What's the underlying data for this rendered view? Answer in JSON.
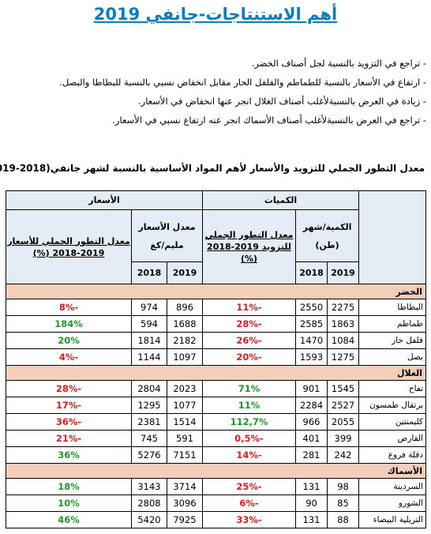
{
  "title": "أهم الاستنتاجات-جانفي 2019",
  "bullets": [
    "- تراجع في التزويد بالنسبة لجل أصناف الخضر.",
    "- ارتفاع في الأسعار بالنسبة للطماطم والفلفل الحار مقابل انخفاض نسبي بالنسبة للبطاطا والبصل.",
    "- زيادة في العرض بالنسبةلأغلب أصناف الغلال انجر عنها انخفاض في الأسعار.",
    "- تراجع في العرض بالنسبةلأغلب أصناف الأسماك انجر عنه ارتفاع نسبي في الأسعار."
  ],
  "table_title": "معدل التطور الجملي للتزويد والأسعار لأهم المواد الأساسية بالنسبة لشهر جانفي(2018-2019)",
  "headers": {
    "quantities": "الكميات",
    "prices": "الأسعار",
    "qty_month": "الكمية/شهر",
    "qty_unit": "(طن)",
    "qty_rate": "معدل التطور الجملي للتزويد 2019-2018 (%)",
    "price_avg": "معدل الأسعار",
    "price_unit": "مليم/كغ",
    "price_rate": "معدل التطور الجملي للأسعار 2019-2018 (%)",
    "y2019": "2019",
    "y2018": "2018"
  },
  "sections": [
    {
      "name": "الخضر",
      "rows": [
        {
          "product": "البطاطا",
          "q2019": "2275",
          "q2018": "2550",
          "qrate": "-11%",
          "p2019": "896",
          "p2018": "974",
          "prate": "-8%"
        },
        {
          "product": "طماطم",
          "q2019": "1863",
          "q2018": "2585",
          "qrate": "-28%",
          "p2019": "1688",
          "p2018": "594",
          "prate": "184%"
        },
        {
          "product": "فلفل حار",
          "q2019": "1084",
          "q2018": "1470",
          "qrate": "-26%",
          "p2019": "2182",
          "p2018": "1814",
          "prate": "20%"
        },
        {
          "product": "بصل",
          "q2019": "1275",
          "q2018": "1593",
          "qrate": "-20%",
          "p2019": "1097",
          "p2018": "1144",
          "prate": "-4%"
        }
      ]
    },
    {
      "name": "الغلال",
      "rows": [
        {
          "product": "تفاح",
          "q2019": "1545",
          "q2018": "901",
          "qrate": "71%",
          "p2019": "2023",
          "p2018": "2804",
          "prate": "-28%"
        },
        {
          "product": "برتقال طمسون",
          "q2019": "2527",
          "q2018": "2284",
          "qrate": "11%",
          "p2019": "1077",
          "p2018": "1295",
          "prate": "-17%"
        },
        {
          "product": "كليمنتين",
          "q2019": "2055",
          "q2018": "966",
          "qrate": "112,7%",
          "p2019": "1514",
          "p2018": "2381",
          "prate": "-36%"
        },
        {
          "product": "القارص",
          "q2019": "399",
          "q2018": "401",
          "qrate": "-0,5%",
          "p2019": "591",
          "p2018": "745",
          "prate": "-21%"
        },
        {
          "product": "دقلة فروع",
          "q2019": "242",
          "q2018": "281",
          "qrate": "-14%",
          "p2019": "7151",
          "p2018": "5276",
          "prate": "36%"
        }
      ]
    },
    {
      "name": "الأسماك",
      "rows": [
        {
          "product": "السردينة",
          "q2019": "98",
          "q2018": "131",
          "qrate": "-25%",
          "p2019": "3714",
          "p2018": "3143",
          "prate": "18%"
        },
        {
          "product": "الشورو",
          "q2019": "85",
          "q2018": "90",
          "qrate": "-6%",
          "p2019": "3096",
          "p2018": "2808",
          "prate": "10%"
        },
        {
          "product": "التريلية البيضاء",
          "q2019": "88",
          "q2018": "131",
          "qrate": "-33%",
          "p2019": "7925",
          "p2018": "5420",
          "prate": "46%"
        }
      ]
    }
  ],
  "colors": {
    "title": "#0a7ec1",
    "positive": "#1e9a23",
    "negative": "#e01b1b",
    "section_bg": "#f3cfbb",
    "header_bg": "#e4ecf5"
  }
}
